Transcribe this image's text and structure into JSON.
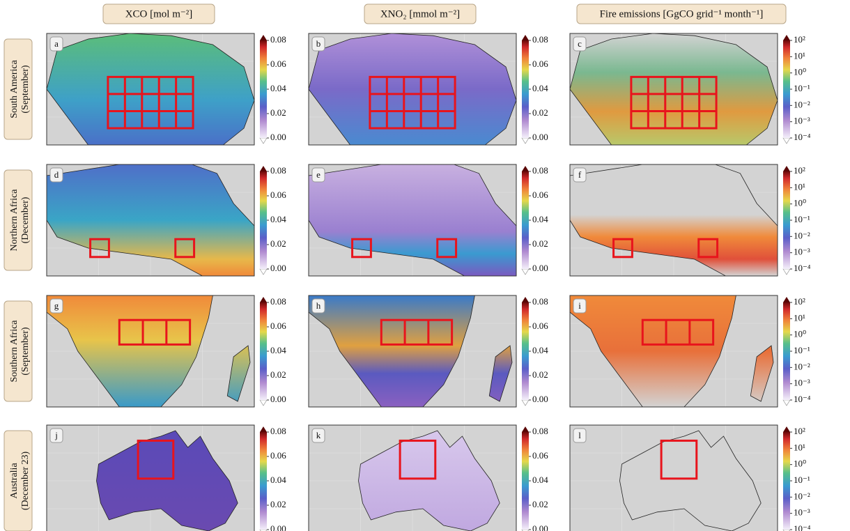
{
  "columns": [
    {
      "title": "XCO [mol m⁻²]",
      "colorbar": {
        "ticks": [
          {
            "value": 0,
            "label": "0.00"
          },
          {
            "value": 0.02,
            "label": "0.02"
          },
          {
            "value": 0.04,
            "label": "0.04"
          },
          {
            "value": 0.06,
            "label": "0.06"
          },
          {
            "value": 0.08,
            "label": "0.08"
          }
        ]
      }
    },
    {
      "title": "XNO₂ [mmol m⁻²]",
      "colorbar": {
        "ticks": [
          {
            "value": 0,
            "label": "0.00"
          },
          {
            "value": 0.02,
            "label": "0.02"
          },
          {
            "value": 0.04,
            "label": "0.04"
          },
          {
            "value": 0.06,
            "label": "0.06"
          },
          {
            "value": 0.08,
            "label": "0.08"
          }
        ]
      }
    },
    {
      "title": "Fire emissions [GgCO grid⁻¹ month⁻¹]",
      "colorbar": {
        "log": true,
        "ticks": [
          {
            "value": 0.0001,
            "label": "10⁻⁴"
          },
          {
            "value": 0.001,
            "label": "10⁻³"
          },
          {
            "value": 0.01,
            "label": "10⁻²"
          },
          {
            "value": 0.1,
            "label": "10⁻¹"
          },
          {
            "value": 1,
            "label": "10⁰"
          },
          {
            "value": 10,
            "label": "10¹"
          },
          {
            "value": 100,
            "label": "10²"
          }
        ]
      }
    }
  ],
  "rows": [
    {
      "label": [
        "South America",
        "(September)"
      ],
      "panels": [
        "a",
        "b",
        "c"
      ]
    },
    {
      "label": [
        "Northern Africa",
        "(December)"
      ],
      "panels": [
        "d",
        "e",
        "f"
      ]
    },
    {
      "label": [
        "Southern Africa",
        "(September)"
      ],
      "panels": [
        "g",
        "h",
        "i"
      ]
    },
    {
      "label": [
        "Australia",
        "(December 23)"
      ],
      "panels": [
        "j",
        "k",
        "l"
      ]
    }
  ]
}
